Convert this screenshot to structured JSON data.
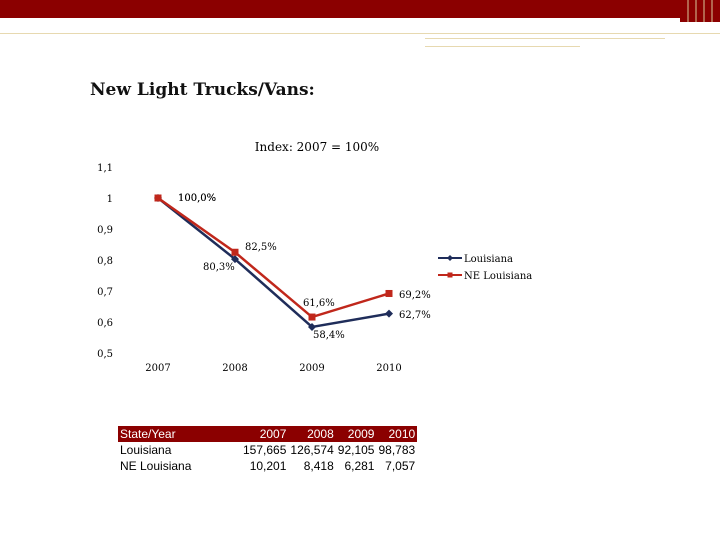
{
  "slide": {
    "title": "New Light Trucks/Vans:"
  },
  "chart_data": {
    "type": "line",
    "title": "Index: 2007 = 100%",
    "categories": [
      "2007",
      "2008",
      "2009",
      "2010"
    ],
    "y_ticks": [
      "1,1",
      "1",
      "0,9",
      "0,8",
      "0,7",
      "0,6",
      "0,5"
    ],
    "ylim": [
      0.5,
      1.1
    ],
    "legend_position": "right",
    "series": [
      {
        "name": "Louisiana",
        "values": [
          1.0,
          0.803,
          0.584,
          0.627
        ],
        "labels": [
          "100,0%",
          "80,3%",
          "58,4%",
          "62,7%"
        ],
        "color": "#1f2d5a",
        "marker": "diamond"
      },
      {
        "name": "NE Louisiana",
        "values": [
          1.0,
          0.825,
          0.616,
          0.692
        ],
        "labels": [
          "100,0%",
          "82,5%",
          "61,6%",
          "69,2%"
        ],
        "color": "#c0271b",
        "marker": "square"
      }
    ]
  },
  "table": {
    "header": [
      "State/Year",
      "2007",
      "2008",
      "2009",
      "2010"
    ],
    "rows": [
      [
        "Louisiana",
        "157,665",
        "126,574",
        "92,105",
        "98,783"
      ],
      [
        "NE Louisiana",
        "10,201",
        "8,418",
        "6,281",
        "7,057"
      ]
    ]
  },
  "colors": {
    "accent": "#8b0000",
    "louisiana": "#1f2d5a",
    "ne_louisiana": "#c0271b"
  }
}
